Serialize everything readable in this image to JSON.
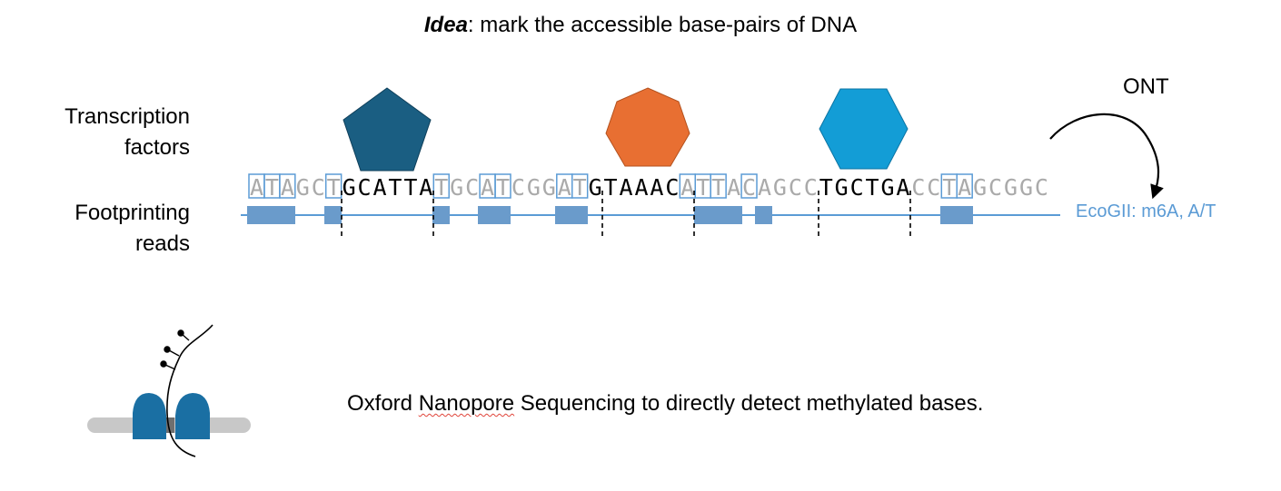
{
  "title": {
    "idea": "Idea",
    "rest": ": mark the accessible base-pairs of DNA"
  },
  "labels": {
    "transcription_factors": [
      "Transcription",
      "factors"
    ],
    "footprinting_reads": [
      "Footprinting",
      "reads"
    ],
    "ont": "ONT",
    "enzyme": "EcoGII: m6A, A/T"
  },
  "caption": {
    "before": "Oxford ",
    "squiggle": "Nanopore",
    "after": " Sequencing to directly detect methylated bases."
  },
  "sequence": "ATAGCTGCATTATGCATCGGATGTAAACATTACAGCCTGCTGACCTAGCGGC",
  "protected_regions": [
    [
      6,
      11
    ],
    [
      22,
      27
    ],
    [
      37,
      42
    ]
  ],
  "boxed_bases": [
    0,
    1,
    2,
    5,
    12,
    15,
    16,
    20,
    21,
    28,
    29,
    30,
    32,
    45,
    46
  ],
  "transcription_factors": [
    {
      "shape": "pentagon",
      "color": "#1a5e82"
    },
    {
      "shape": "heptagon",
      "color": "#e86f32"
    },
    {
      "shape": "hexagon",
      "color": "#139dd6"
    }
  ],
  "colors": {
    "base_gray": "#aaaaaa",
    "box_blue": "#5b9bd5",
    "read_line": "#5b9bd5",
    "read_block": "#6a9bcb",
    "pore": "#1a6fa3",
    "membrane": "#c8c8c8"
  }
}
